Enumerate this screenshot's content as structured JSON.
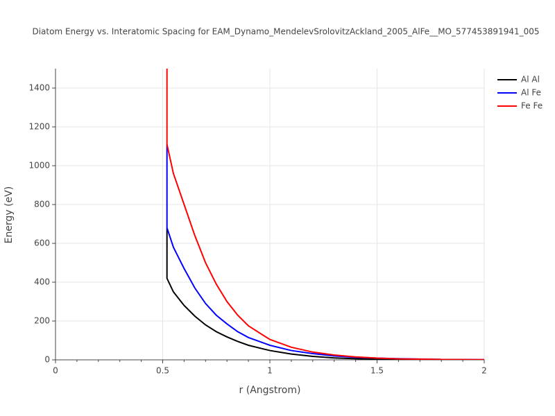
{
  "chart_data": {
    "type": "line",
    "title": "Diatom Energy vs. Interatomic Spacing for EAM_Dynamo_MendelevSrolovitzAckland_2005_AlFe__MO_577453891941_005",
    "xlabel": "r (Angstrom)",
    "ylabel": "Energy (eV)",
    "xlim": [
      0,
      2
    ],
    "ylim": [
      0,
      1500
    ],
    "xticks": [
      0,
      0.5,
      1,
      1.5,
      2
    ],
    "yticks": [
      0,
      200,
      400,
      600,
      800,
      1000,
      1200,
      1400
    ],
    "grid": true,
    "legend": "right",
    "series": [
      {
        "name": "Al Al",
        "color": "#000000",
        "x": [
          0.52,
          0.52,
          0.55,
          0.6,
          0.65,
          0.7,
          0.75,
          0.8,
          0.85,
          0.9,
          1.0,
          1.1,
          1.2,
          1.3,
          1.4,
          1.5,
          1.6,
          1.8,
          2.0
        ],
        "values": [
          680,
          420,
          350,
          280,
          225,
          180,
          145,
          118,
          95,
          75,
          48,
          30,
          18,
          10,
          6,
          3,
          2,
          1,
          0
        ]
      },
      {
        "name": "Al Fe",
        "color": "#0000ff",
        "x": [
          0.52,
          0.52,
          0.55,
          0.6,
          0.65,
          0.7,
          0.75,
          0.8,
          0.85,
          0.9,
          1.0,
          1.1,
          1.2,
          1.3,
          1.4,
          1.5,
          1.6,
          1.8,
          2.0
        ],
        "values": [
          1110,
          680,
          580,
          470,
          370,
          290,
          230,
          185,
          145,
          115,
          75,
          48,
          32,
          20,
          13,
          9,
          6,
          2,
          1
        ]
      },
      {
        "name": "Fe Fe",
        "color": "#ff0000",
        "x": [
          0.52,
          0.52,
          0.55,
          0.6,
          0.65,
          0.7,
          0.75,
          0.8,
          0.85,
          0.9,
          1.0,
          1.1,
          1.2,
          1.3,
          1.4,
          1.5,
          1.6,
          1.8,
          2.0
        ],
        "values": [
          1500,
          1110,
          960,
          800,
          640,
          500,
          390,
          300,
          230,
          175,
          105,
          65,
          40,
          25,
          15,
          9,
          5,
          2,
          1
        ]
      }
    ]
  }
}
